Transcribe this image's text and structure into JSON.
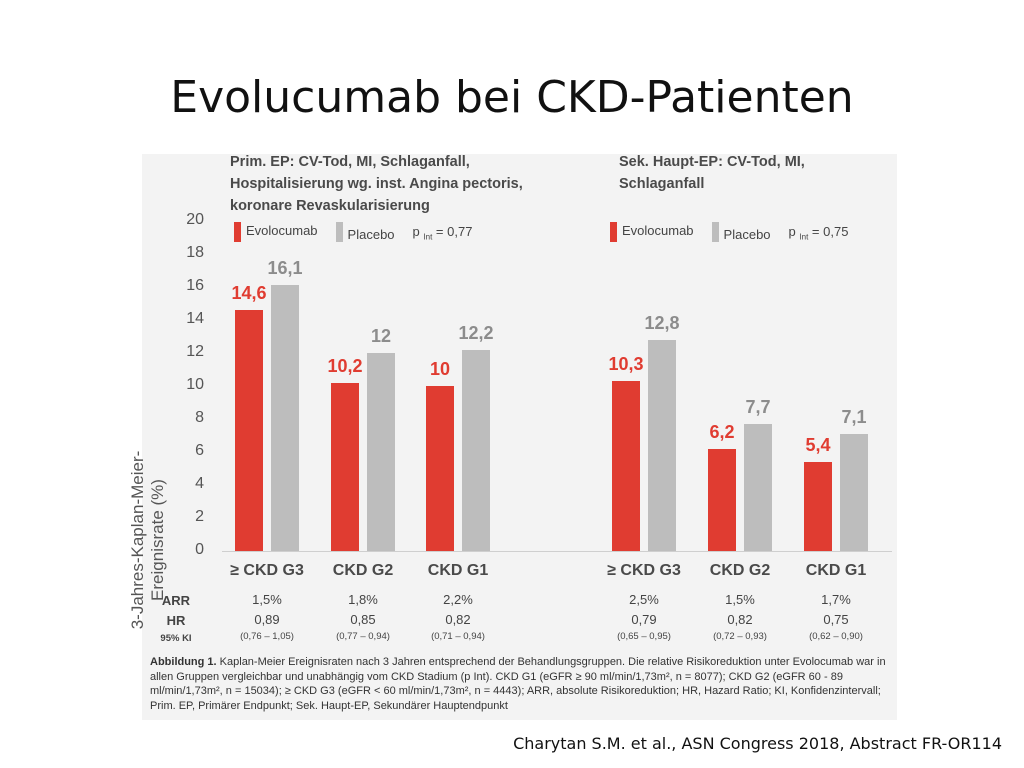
{
  "slide": {
    "title": "Evolucumab bei CKD-Patienten",
    "citation": "Charytan S.M. et al., ASN Congress 2018, Abstract FR-OR114"
  },
  "panels": [
    {
      "title_lines": [
        "Prim. EP: CV-Tod, MI, Schlaganfall,",
        "Hospitalisierung wg. inst. Angina pectoris,",
        "koronare Revaskularisierung"
      ],
      "legend_evo": "Evolocumab",
      "legend_pla": "Placebo",
      "p_label": "p",
      "p_sub": "Int",
      "p_value": "= 0,77"
    },
    {
      "title_lines": [
        "Sek. Haupt-EP: CV-Tod, MI,",
        "Schlaganfall"
      ],
      "legend_evo": "Evolocumab",
      "legend_pla": "Placebo",
      "p_label": "p",
      "p_sub": "Int",
      "p_value": "= 0,75"
    }
  ],
  "stats_labels": {
    "arr": "ARR",
    "hr": "HR",
    "ci": "95% KI"
  },
  "stats": [
    {
      "arr": "1,5%",
      "hr": "0,89",
      "ci": "(0,76 – 1,05)"
    },
    {
      "arr": "1,8%",
      "hr": "0,85",
      "ci": "(0,77 – 0,94)"
    },
    {
      "arr": "2,2%",
      "hr": "0,82",
      "ci": "(0,71 – 0,94)"
    },
    {
      "arr": "2,5%",
      "hr": "0,79",
      "ci": "(0,65 – 0,95)"
    },
    {
      "arr": "1,5%",
      "hr": "0,82",
      "ci": "(0,72 – 0,93)"
    },
    {
      "arr": "1,7%",
      "hr": "0,75",
      "ci": "(0,62 – 0,90)"
    }
  ],
  "caption": {
    "label": "Abbildung 1.",
    "text": "Kaplan-Meier Ereignisraten nach 3 Jahren entsprechend der Behandlungsgruppen. Die relative Risikoreduktion unter Evolocumab war in allen Gruppen vergleichbar und unabhängig vom CKD Stadium (p Int). CKD G1 (eGFR ≥ 90 ml/min/1,73m², n = 8077); CKD G2 (eGFR 60 - 89 ml/min/1,73m², n = 15034); ≥ CKD G3 (eGFR < 60 ml/min/1,73m², n = 4443); ARR, absolute Risikoreduktion; HR, Hazard Ratio; KI, Konfidenzintervall; Prim. EP, Primärer Endpunkt; Sek. Haupt-EP, Sekundärer Hauptendpunkt"
  },
  "colors": {
    "evolocumab": "#e03c31",
    "placebo": "#bdbdbd",
    "evo_label": "#e03c31",
    "pla_label": "#8c8c8c"
  },
  "chart_data": {
    "type": "bar",
    "ylabel": "3-Jahres-Kaplan-Meier-Ereignisrate (%)",
    "ylim": [
      0,
      20
    ],
    "yticks": [
      0,
      2,
      4,
      6,
      8,
      10,
      12,
      14,
      16,
      18,
      20
    ],
    "categories": [
      "≥ CKD G3",
      "CKD G2",
      "CKD G1",
      "≥ CKD G3",
      "CKD G2",
      "CKD G1"
    ],
    "series": [
      {
        "name": "Evolocumab",
        "values": [
          14.6,
          10.2,
          10,
          10.3,
          6.2,
          5.4
        ],
        "labels": [
          "14,6",
          "10,2",
          "10",
          "10,3",
          "6,2",
          "5,4"
        ]
      },
      {
        "name": "Placebo",
        "values": [
          16.1,
          12,
          12.2,
          12.8,
          7.7,
          7.1
        ],
        "labels": [
          "16,1",
          "12",
          "12,2",
          "12,8",
          "7,7",
          "7,1"
        ]
      }
    ],
    "legend": "top-left",
    "grid": false
  }
}
